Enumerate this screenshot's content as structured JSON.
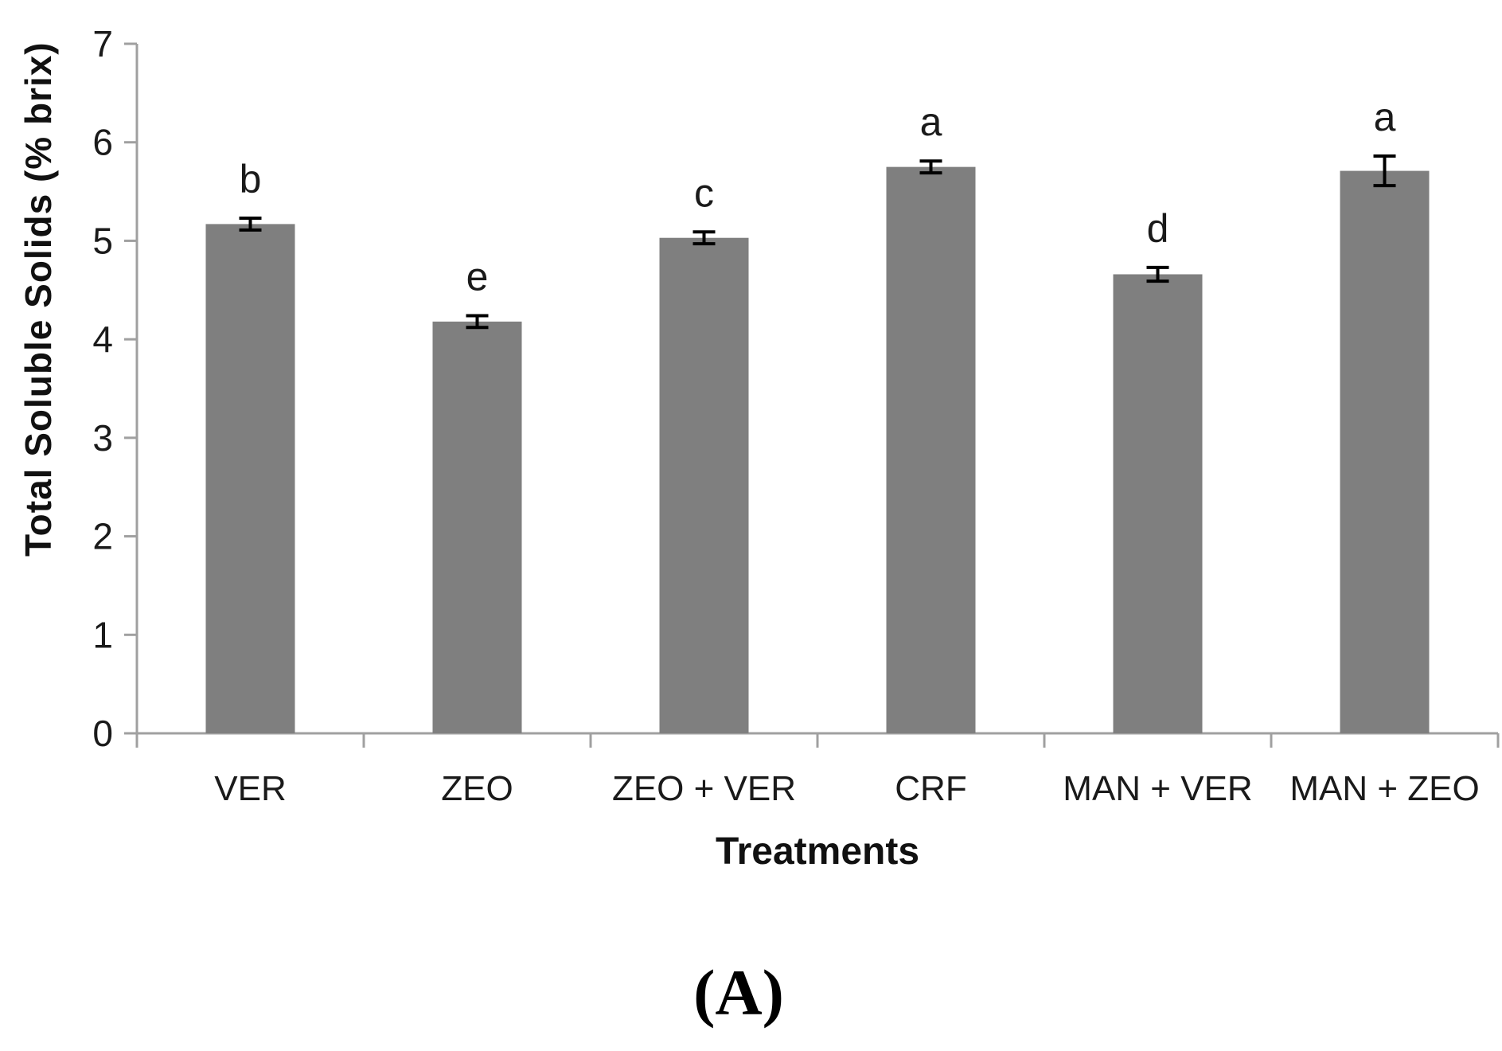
{
  "chart_data": {
    "type": "bar",
    "title": "",
    "ylabel": "Total Soluble Solids (% brix)",
    "xlabel": "Treatments",
    "caption": "(A)",
    "categories": [
      "VER",
      "ZEO",
      "ZEO + VER",
      "CRF",
      "MAN + VER",
      "MAN + ZEO"
    ],
    "series": [
      {
        "name": "Total Soluble Solids",
        "values": [
          5.17,
          4.18,
          5.03,
          5.75,
          4.66,
          5.71
        ],
        "errors": [
          0.06,
          0.06,
          0.06,
          0.06,
          0.07,
          0.15
        ],
        "sig_letters": [
          "b",
          "e",
          "c",
          "a",
          "d",
          "a"
        ]
      }
    ],
    "ylim": [
      0,
      7
    ],
    "yticks": [
      0,
      1,
      2,
      3,
      4,
      5,
      6,
      7
    ],
    "grid": false,
    "legend": false,
    "bar_color": "#7f7f7f",
    "axis_color": "#a0a0a0",
    "error_bar_color": "#000000",
    "text_color": "#1a1a1a"
  }
}
